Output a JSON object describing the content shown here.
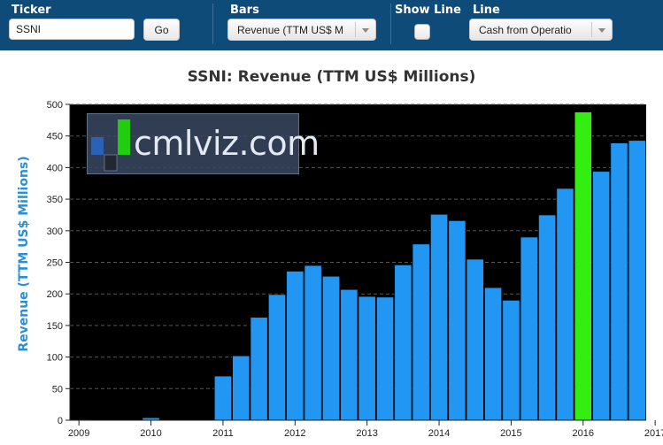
{
  "toolbar": {
    "ticker_label": "Ticker",
    "ticker_value": "SSNI",
    "go_label": "Go",
    "bars_label": "Bars",
    "bars_selected": "Revenue (TTM US$ M",
    "show_line_label": "Show Line",
    "show_line_checked": false,
    "line_label": "Line",
    "line_selected": "Cash from Operatio"
  },
  "logo": {
    "text": "cmlviz.com"
  },
  "chart_data": {
    "type": "bar",
    "title": "SSNI: Revenue (TTM US$ Millions)",
    "xlabel": "",
    "ylabel": "Revenue (TTM US$ Millions)",
    "ylim": [
      0,
      500
    ],
    "yticks": [
      0,
      50,
      100,
      150,
      200,
      250,
      300,
      350,
      400,
      450,
      500
    ],
    "xticks": [
      "2009",
      "2010",
      "2011",
      "2012",
      "2013",
      "2014",
      "2015",
      "2016",
      "2017"
    ],
    "grid": true,
    "values": [
      1,
      0,
      0,
      0,
      4,
      0,
      0,
      0,
      70,
      102,
      163,
      199,
      236,
      245,
      228,
      207,
      196,
      195,
      246,
      279,
      326,
      316,
      255,
      210,
      190,
      290,
      325,
      367,
      488,
      394,
      439,
      443
    ],
    "highlight_index": 28,
    "colors": {
      "bar": "#2196f3",
      "highlight": "#33ee11",
      "background": "#000000",
      "grid": "#555555"
    }
  }
}
